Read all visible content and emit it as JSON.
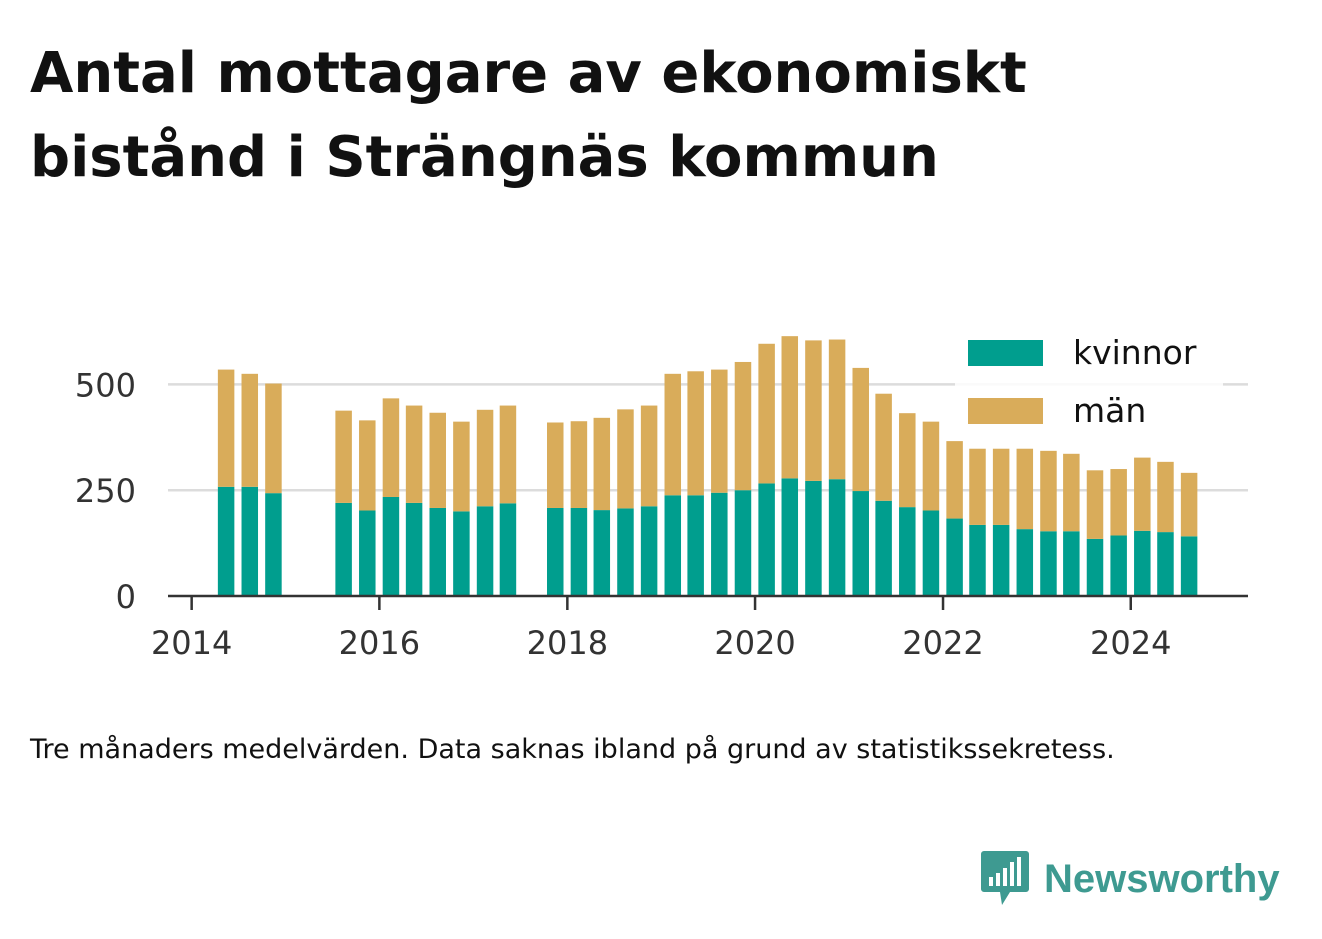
{
  "title": "Antal mottagare av ekonomiskt bistånd i Strängnäs kommun",
  "note": "Tre månaders medelvärden. Data saknas ibland på grund av statistikssekretess.",
  "brand": {
    "name": "Newsworthy",
    "icon": "bar-chart-logo-icon"
  },
  "colors": {
    "kvinnor": "#009e8e",
    "man": "#d9ac5a",
    "grid": "#dcdcdc",
    "axis": "#333333",
    "brand": "#3e9a91"
  },
  "chart_data": {
    "type": "bar",
    "stacked": true,
    "x_axis": {
      "type": "date",
      "min": "2013-10-01",
      "max": "2025-04-01",
      "ticks": [
        "2014",
        "2016",
        "2018",
        "2020",
        "2022",
        "2024"
      ]
    },
    "y_axis": {
      "min": 0,
      "max": 640,
      "ticks": [
        0,
        250,
        500
      ],
      "grid": true
    },
    "legend": {
      "position": "top-right",
      "entries": [
        "kvinnor",
        "män"
      ]
    },
    "x": [
      "2014-05",
      "2014-08",
      "2014-11",
      "2015-08",
      "2015-11",
      "2016-02",
      "2016-05",
      "2016-08",
      "2016-11",
      "2017-02",
      "2017-05",
      "2017-11",
      "2018-02",
      "2018-05",
      "2018-08",
      "2018-11",
      "2019-02",
      "2019-05",
      "2019-08",
      "2019-11",
      "2020-02",
      "2020-05",
      "2020-08",
      "2020-11",
      "2021-02",
      "2021-05",
      "2021-08",
      "2021-11",
      "2022-02",
      "2022-05",
      "2022-08",
      "2022-11",
      "2023-02",
      "2023-05",
      "2023-08",
      "2023-11",
      "2024-02",
      "2024-05",
      "2024-08"
    ],
    "series": [
      {
        "name": "kvinnor",
        "values": [
          258,
          258,
          243,
          220,
          202,
          234,
          220,
          208,
          200,
          212,
          219,
          208,
          208,
          203,
          207,
          212,
          238,
          238,
          244,
          250,
          266,
          278,
          272,
          276,
          248,
          225,
          210,
          202,
          183,
          168,
          168,
          158,
          153,
          153,
          135,
          143,
          154,
          151,
          141
        ]
      },
      {
        "name": "män",
        "values": [
          277,
          267,
          259,
          218,
          213,
          233,
          230,
          225,
          212,
          228,
          231,
          202,
          205,
          218,
          234,
          238,
          287,
          293,
          291,
          303,
          330,
          336,
          332,
          330,
          291,
          253,
          222,
          210,
          183,
          180,
          180,
          190,
          190,
          183,
          162,
          157,
          173,
          166,
          150
        ]
      }
    ]
  }
}
